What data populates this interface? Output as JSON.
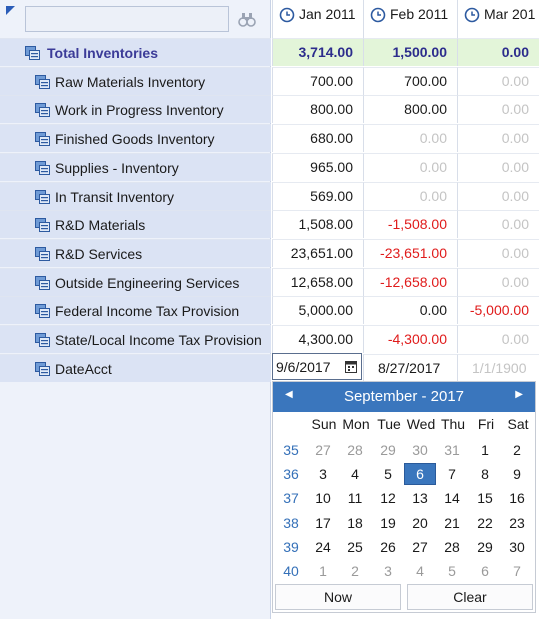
{
  "search": {
    "value": ""
  },
  "columns": [
    "Jan 2011",
    "Feb 2011",
    "Mar 201"
  ],
  "rows": [
    {
      "label": "Total Inventories",
      "vals": [
        "3,714.00",
        "1,500.00",
        "0.00"
      ],
      "total": true
    },
    {
      "label": "Raw Materials Inventory",
      "vals": [
        "700.00",
        "700.00",
        "0.00"
      ]
    },
    {
      "label": "Work in Progress Inventory",
      "vals": [
        "800.00",
        "800.00",
        "0.00"
      ]
    },
    {
      "label": "Finished Goods Inventory",
      "vals": [
        "680.00",
        "0.00",
        "0.00"
      ]
    },
    {
      "label": "Supplies - Inventory",
      "vals": [
        "965.00",
        "0.00",
        "0.00"
      ]
    },
    {
      "label": "In Transit Inventory",
      "vals": [
        "569.00",
        "0.00",
        "0.00"
      ]
    },
    {
      "label": "R&D Materials",
      "vals": [
        "1,508.00",
        "-1,508.00",
        "0.00"
      ]
    },
    {
      "label": "R&D Services",
      "vals": [
        "23,651.00",
        "-23,651.00",
        "0.00"
      ]
    },
    {
      "label": "Outside Engineering Services",
      "vals": [
        "12,658.00",
        "-12,658.00",
        "0.00"
      ]
    },
    {
      "label": "Federal Income Tax Provision",
      "vals": [
        "5,000.00",
        "0.00",
        "-5,000.00"
      ]
    },
    {
      "label": "State/Local Income Tax Provision",
      "vals": [
        "4,300.00",
        "-4,300.00",
        "0.00"
      ]
    },
    {
      "label": "DateAcct",
      "vals": [
        "9/6/2017",
        "8/27/2017",
        "1/1/1900"
      ]
    }
  ],
  "calendar": {
    "title": "September - 2017",
    "dow": [
      "Sun",
      "Mon",
      "Tue",
      "Wed",
      "Thu",
      "Fri",
      "Sat"
    ],
    "weeks": [
      {
        "wk": "35",
        "days": [
          "27",
          "28",
          "29",
          "30",
          "31",
          "1",
          "2"
        ]
      },
      {
        "wk": "36",
        "days": [
          "3",
          "4",
          "5",
          "6",
          "7",
          "8",
          "9"
        ]
      },
      {
        "wk": "37",
        "days": [
          "10",
          "11",
          "12",
          "13",
          "14",
          "15",
          "16"
        ]
      },
      {
        "wk": "38",
        "days": [
          "17",
          "18",
          "19",
          "20",
          "21",
          "22",
          "23"
        ]
      },
      {
        "wk": "39",
        "days": [
          "24",
          "25",
          "26",
          "27",
          "28",
          "29",
          "30"
        ]
      },
      {
        "wk": "40",
        "days": [
          "1",
          "2",
          "3",
          "4",
          "5",
          "6",
          "7"
        ]
      }
    ],
    "selected": "6",
    "now_label": "Now",
    "clear_label": "Clear"
  },
  "colors": {
    "accent": "#3a76bd",
    "negative": "#e01b1b",
    "total_bg": "#e3f5d9",
    "zero": "#c4c4c4"
  }
}
